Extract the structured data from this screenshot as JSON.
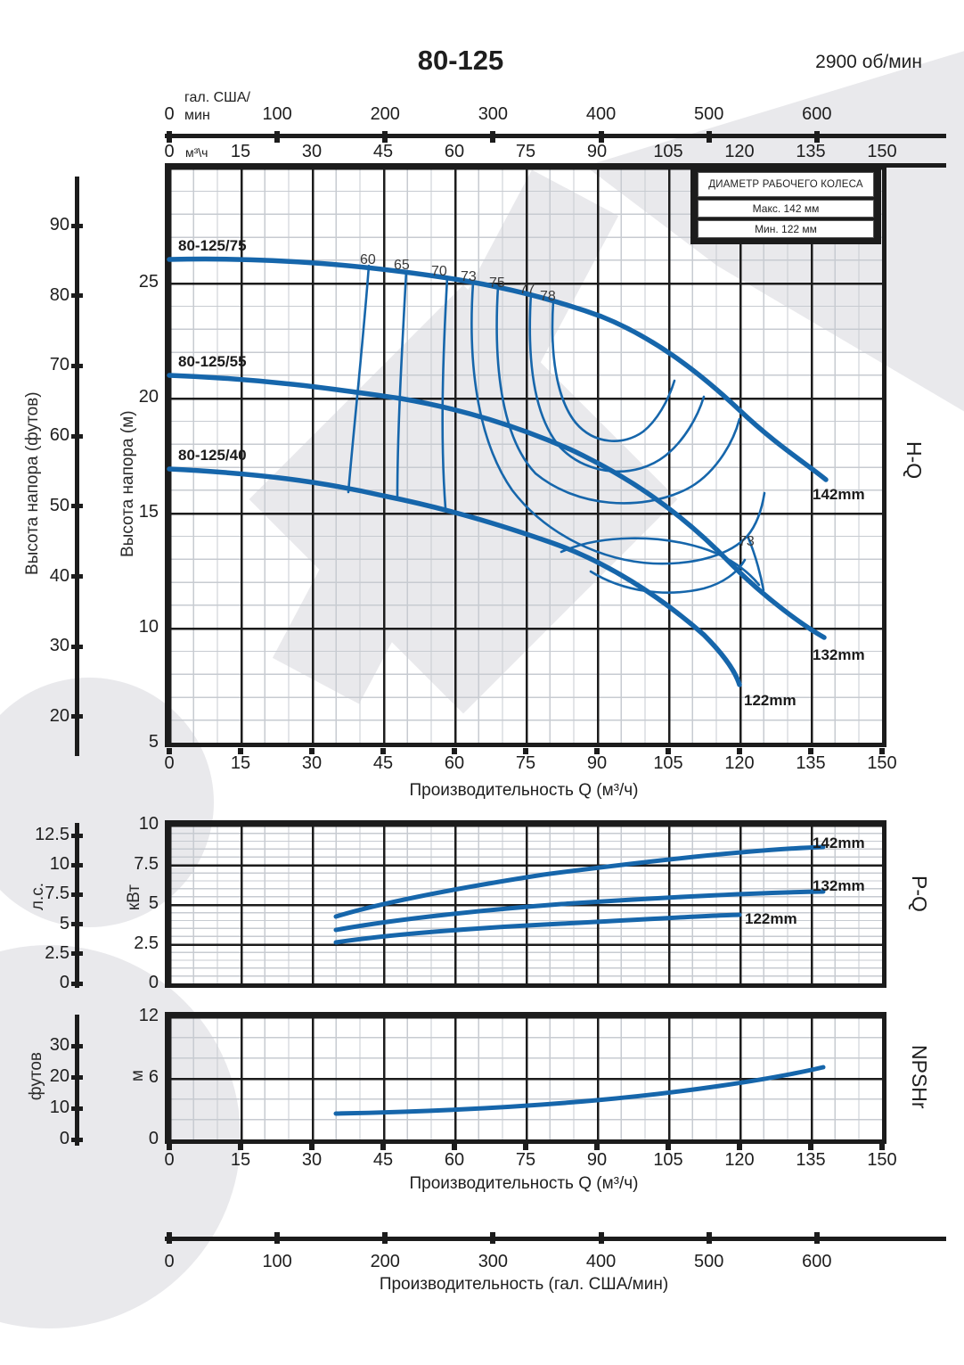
{
  "header": {
    "title": "80-125",
    "rpm": "2900 об/мин"
  },
  "legend": {
    "title": "ДИАМЕТР РАБОЧЕГО КОЛЕСА",
    "max": "Макс. 142 мм",
    "min": "Мин. 122 мм"
  },
  "axes": {
    "gal_unit1": "гал. США/",
    "gal_unit2": "мин",
    "m3_unit": "м³\\ч",
    "gal_labels": [
      "0",
      "100",
      "200",
      "300",
      "400",
      "500",
      "600"
    ],
    "q_labels": [
      "0",
      "15",
      "30",
      "45",
      "60",
      "75",
      "90",
      "105",
      "120",
      "135",
      "150"
    ],
    "head_m": [
      "25",
      "20",
      "15",
      "10",
      "5"
    ],
    "head_ft": [
      "90",
      "80",
      "70",
      "60",
      "50",
      "40",
      "30",
      "20"
    ],
    "kw": [
      "10",
      "7.5",
      "5",
      "2.5",
      "0"
    ],
    "hp": [
      "12.5",
      "10",
      "7.5",
      "5",
      "2.5",
      "0"
    ],
    "npsh_m": [
      "12",
      "6",
      "0"
    ],
    "npsh_ft": [
      "30",
      "20",
      "10",
      "0"
    ],
    "head_m_title": "Высота напора (м)",
    "head_ft_title": "Высота напора (футов)",
    "kw_title": "кВт",
    "hp_title": "л.с.",
    "npsh_m_title": "м",
    "npsh_ft_title": "футов",
    "q_title": "Производительность Q (м³/ч)",
    "gal_title": "Производительность (гал. США/мин)"
  },
  "sections": {
    "hq": "H-Q",
    "pq": "P-Q",
    "npshr": "NPSHr"
  },
  "curves": {
    "hq_labels": [
      "80-125/75",
      "80-125/55",
      "80-125/40"
    ],
    "hq_diams": [
      "142mm",
      "132mm",
      "122mm"
    ],
    "pq_diams": [
      "142mm",
      "132mm",
      "122mm"
    ],
    "eff_top": [
      "60",
      "65",
      "70",
      "73",
      "75",
      "77",
      "78"
    ],
    "eff_right": "73"
  },
  "colors": {
    "curve_blue": "#1666ab",
    "grid_major": "#1c1c1c",
    "grid_minor": "#c7cbd1",
    "watermark": "#e9e9ec"
  },
  "chart_data": [
    {
      "type": "line",
      "title": "H-Q (80-125, 2900 об/мин)",
      "xlabel": "Производительность Q (м³/ч)",
      "ylabel": "Высота напора (м)",
      "xlim": [
        0,
        150
      ],
      "ylim": [
        5,
        30
      ],
      "x2label": "Производительность (гал. США/мин)",
      "y2label": "Высота напора (футов)",
      "series": [
        {
          "name": "142mm (80-125/75)",
          "x": [
            0,
            15,
            30,
            45,
            60,
            75,
            90,
            105,
            120,
            135,
            138
          ],
          "y": [
            26.0,
            25.9,
            25.6,
            25.3,
            24.7,
            23.9,
            22.6,
            21.0,
            19.2,
            17.2,
            16.4
          ]
        },
        {
          "name": "132mm (80-125/55)",
          "x": [
            0,
            15,
            30,
            45,
            60,
            75,
            90,
            105,
            120,
            135,
            138
          ],
          "y": [
            20.9,
            20.8,
            20.5,
            20.1,
            19.5,
            18.6,
            17.3,
            15.6,
            13.2,
            10.4,
            9.6
          ]
        },
        {
          "name": "122mm (80-125/40)",
          "x": [
            0,
            15,
            30,
            45,
            60,
            75,
            90,
            105,
            120
          ],
          "y": [
            16.9,
            16.7,
            16.3,
            15.8,
            15.1,
            14.1,
            12.6,
            10.8,
            7.5
          ]
        }
      ],
      "efficiency_contours_percent": [
        60,
        65,
        70,
        73,
        75,
        77,
        78
      ],
      "impeller": {
        "max_mm": 142,
        "min_mm": 122
      }
    },
    {
      "type": "line",
      "title": "P-Q",
      "ylabel": "кВт",
      "y2label": "л.с.",
      "ylim": [
        0,
        10
      ],
      "series": [
        {
          "name": "142mm",
          "x": [
            35,
            60,
            90,
            120,
            138
          ],
          "y": [
            4.2,
            6.0,
            7.2,
            8.3,
            8.6
          ]
        },
        {
          "name": "132mm",
          "x": [
            35,
            60,
            90,
            120,
            138
          ],
          "y": [
            3.4,
            4.8,
            5.4,
            5.7,
            5.8
          ]
        },
        {
          "name": "122mm",
          "x": [
            35,
            60,
            90,
            120
          ],
          "y": [
            2.6,
            3.6,
            4.2,
            4.3
          ]
        }
      ]
    },
    {
      "type": "line",
      "title": "NPSHr",
      "ylabel": "м",
      "y2label": "футов",
      "ylim": [
        0,
        12
      ],
      "series": [
        {
          "name": "NPSHr",
          "x": [
            35,
            60,
            90,
            120,
            138
          ],
          "y": [
            2.4,
            2.8,
            3.7,
            5.3,
            7.0
          ]
        }
      ]
    }
  ]
}
